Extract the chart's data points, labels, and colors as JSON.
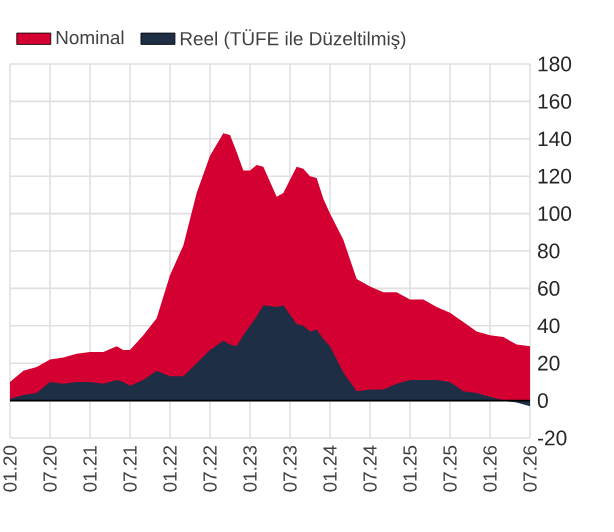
{
  "chart_data": {
    "type": "area",
    "x": [
      "2020-01",
      "2020-03",
      "2020-05",
      "2020-07",
      "2020-09",
      "2020-11",
      "2021-01",
      "2021-03",
      "2021-05",
      "2021-06",
      "2021-07",
      "2021-09",
      "2021-11",
      "2022-01",
      "2022-03",
      "2022-05",
      "2022-07",
      "2022-09",
      "2022-10",
      "2022-11",
      "2022-12",
      "2023-01",
      "2023-02",
      "2023-03",
      "2023-05",
      "2023-06",
      "2023-08",
      "2023-09",
      "2023-10",
      "2023-11",
      "2023-12",
      "2024-01",
      "2024-03",
      "2024-05",
      "2024-07",
      "2024-09",
      "2024-11",
      "2025-01",
      "2025-03",
      "2025-05",
      "2025-07",
      "2025-09",
      "2025-11",
      "2026-01",
      "2026-03",
      "2026-05",
      "2026-07"
    ],
    "series": [
      {
        "name": "Nominal",
        "color": "#d50032",
        "values": [
          10,
          16,
          18,
          22,
          23,
          25,
          26,
          26,
          29,
          27,
          27,
          35,
          44,
          67,
          83,
          111,
          131,
          143,
          142,
          133,
          123,
          123,
          126,
          125,
          109,
          111,
          125,
          124,
          120,
          119,
          108,
          100,
          86,
          65,
          61,
          58,
          58,
          54,
          54,
          50,
          47,
          42,
          37,
          35,
          34,
          30,
          29
        ]
      },
      {
        "name": "Reel (TÜFE ile Düzeltilmiş)",
        "color": "#1e2f45",
        "values": [
          1,
          3,
          4,
          10,
          9,
          10,
          10,
          9,
          11,
          10,
          8,
          11,
          16,
          13,
          13,
          20,
          27,
          32,
          30,
          29,
          35,
          40,
          45,
          51,
          50,
          51,
          41,
          40,
          37,
          38,
          33,
          29,
          15,
          5,
          6,
          6,
          9,
          11,
          11,
          11,
          10,
          5,
          4,
          2,
          0,
          -1,
          -3
        ]
      }
    ],
    "xlim": [
      "2020-01",
      "2026-07"
    ],
    "xticks": [
      {
        "value": "2020-01",
        "label": "01.20"
      },
      {
        "value": "2020-07",
        "label": "07.20"
      },
      {
        "value": "2021-01",
        "label": "01.21"
      },
      {
        "value": "2021-07",
        "label": "07.21"
      },
      {
        "value": "2022-01",
        "label": "01.22"
      },
      {
        "value": "2022-07",
        "label": "07.22"
      },
      {
        "value": "2023-01",
        "label": "01.23"
      },
      {
        "value": "2023-07",
        "label": "07.23"
      },
      {
        "value": "2024-01",
        "label": "01.24"
      },
      {
        "value": "2024-07",
        "label": "07.24"
      },
      {
        "value": "2025-01",
        "label": "01.25"
      },
      {
        "value": "2025-07",
        "label": "07.25"
      },
      {
        "value": "2026-01",
        "label": "01.26"
      },
      {
        "value": "2026-07",
        "label": "07.26"
      }
    ],
    "ylim": [
      -20,
      180
    ],
    "yticks": [
      -20,
      0,
      20,
      40,
      60,
      80,
      100,
      120,
      140,
      160,
      180
    ],
    "grid": true,
    "legend": "top left"
  }
}
